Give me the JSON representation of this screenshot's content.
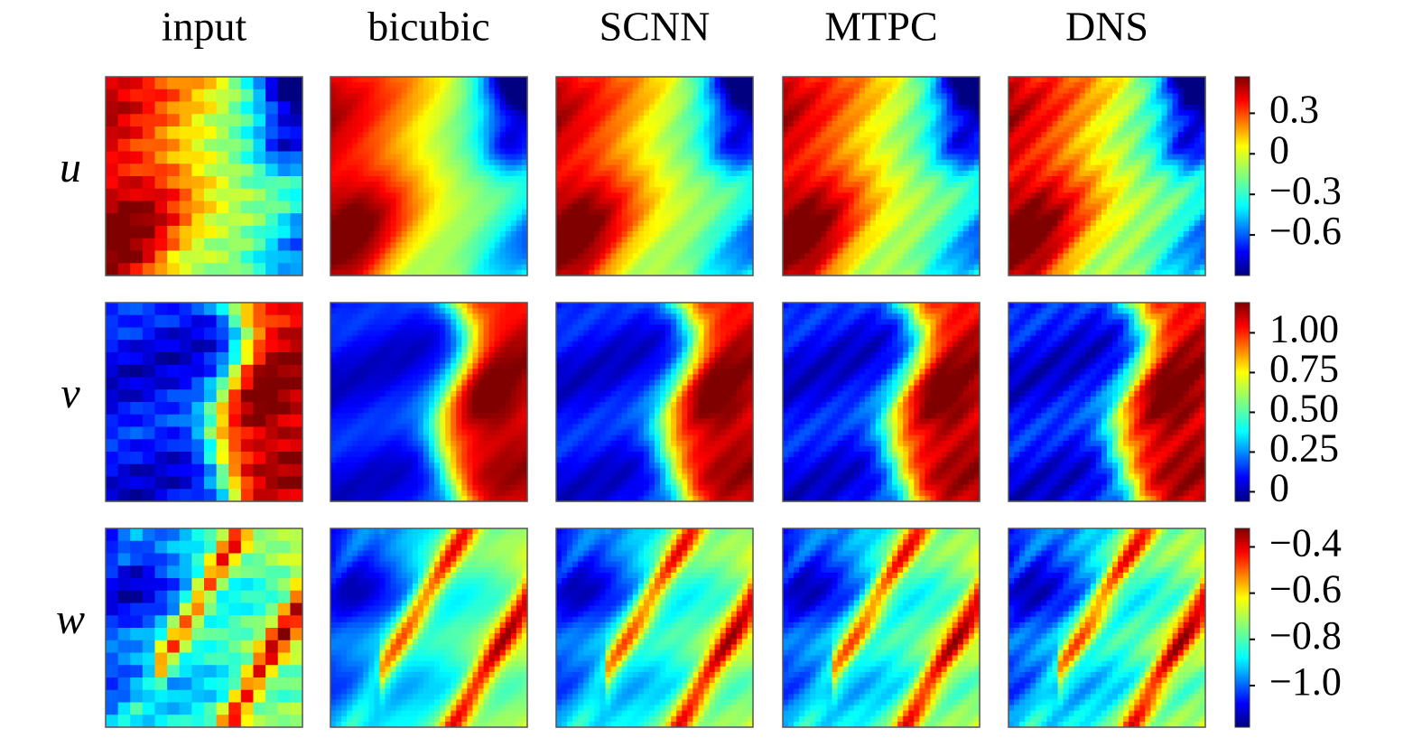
{
  "figure": {
    "columns": [
      "input",
      "bicubic",
      "SCNN",
      "MTPC",
      "DNS"
    ],
    "rows": [
      {
        "label": "u",
        "colorbar": {
          "lim": [
            -0.9,
            0.57
          ],
          "ticks": [
            {
              "value": 0.3,
              "label": "0.3"
            },
            0,
            {
              "value": -0.3,
              "label": "−0.3"
            },
            {
              "value": -0.6,
              "label": "−0.6"
            }
          ]
        }
      },
      {
        "label": "v",
        "colorbar": {
          "lim": [
            -0.06,
            1.19
          ],
          "ticks": [
            {
              "value": 1,
              "label": "1.00"
            },
            0.75,
            {
              "value": 0.5,
              "label": "0.50"
            },
            0.25,
            0
          ]
        }
      },
      {
        "label": "w",
        "colorbar": {
          "lim": [
            -1.18,
            -0.32
          ],
          "ticks": [
            {
              "value": -0.4,
              "label": "−0.4"
            },
            {
              "value": -0.6,
              "label": "−0.6"
            },
            {
              "value": -0.8,
              "label": "−0.8"
            },
            {
              "value": -1,
              "label": "−1.0"
            }
          ]
        }
      }
    ]
  }
}
